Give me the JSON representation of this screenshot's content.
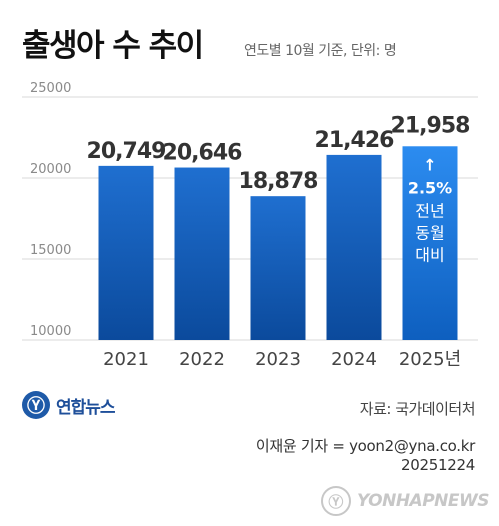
{
  "header": {
    "title": "출생아 수 추이",
    "subtitle": "연도별 10월 기준, 단위: 명"
  },
  "chart_data": {
    "type": "bar",
    "categories": [
      "2021",
      "2022",
      "2023",
      "2024",
      "2025년"
    ],
    "values": [
      20749,
      20646,
      18878,
      21426,
      21958
    ],
    "value_labels": [
      "20,749",
      "20,646",
      "18,878",
      "21,426",
      "21,958"
    ],
    "yticks": [
      "25000",
      "20000",
      "15000",
      "10000"
    ],
    "ytick_values": [
      25000,
      20000,
      15000,
      10000
    ],
    "ylim": [
      10000,
      25000
    ],
    "grid": true,
    "annotation": {
      "arrow": "↑",
      "percent": "2.5%",
      "lines": [
        "전년",
        "동월",
        "대비"
      ]
    },
    "colors": {
      "bar_top": "#1f6fd0",
      "bar_bottom": "#0b4a9c",
      "highlight_top": "#2c8cf0",
      "highlight_bottom": "#0e5fbf",
      "value_text": "#333333",
      "highlight_value_text": "#555555"
    }
  },
  "footer": {
    "logo_text": "연합뉴스",
    "logo_icon": "yonhap-logo-icon",
    "source": "자료: 국가데이터처",
    "reporter": "이재윤 기자 = yoon2@yna.co.kr",
    "date": "20251224",
    "watermark": "YONHAPNEWS"
  }
}
